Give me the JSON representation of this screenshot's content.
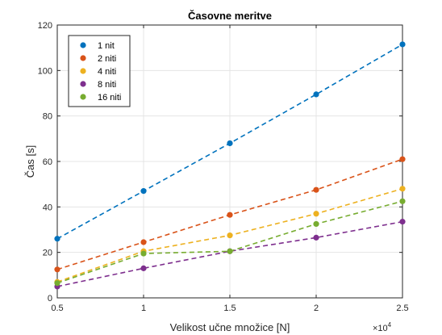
{
  "chart_data": {
    "type": "line",
    "title": "Časovne meritve",
    "xlabel": "Velikost učne množice [N]",
    "ylabel": "Čas [s]",
    "x_multiplier_prefix": "×10",
    "x_multiplier_exponent": "4",
    "x": [
      0.5,
      1,
      1.5,
      2,
      2.5
    ],
    "xlim": [
      0.5,
      2.5
    ],
    "ylim": [
      0,
      120
    ],
    "xticks": [
      "0.5",
      "1",
      "1.5",
      "2",
      "2.5"
    ],
    "yticks": [
      "0",
      "20",
      "40",
      "60",
      "80",
      "100",
      "120"
    ],
    "grid": true,
    "legend_position": "top-left",
    "line_style": "dashed",
    "series": [
      {
        "name": "1 nit",
        "color": "#0072BD",
        "values": [
          26,
          47,
          68,
          89.5,
          111.5
        ]
      },
      {
        "name": "2 niti",
        "color": "#D95319",
        "values": [
          12.5,
          24.5,
          36.5,
          47.5,
          61
        ]
      },
      {
        "name": "4 niti",
        "color": "#EDB120",
        "values": [
          7,
          20.5,
          27.5,
          37,
          48
        ]
      },
      {
        "name": "8 niti",
        "color": "#7E2F8E",
        "values": [
          5,
          13,
          20.5,
          26.5,
          33.5
        ]
      },
      {
        "name": "16 niti",
        "color": "#77AC30",
        "values": [
          6.5,
          19.5,
          20.5,
          32.5,
          42.5
        ]
      }
    ]
  }
}
